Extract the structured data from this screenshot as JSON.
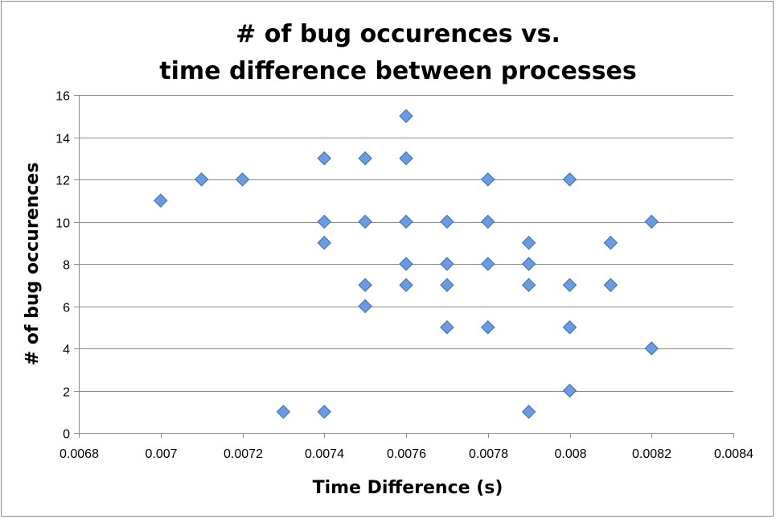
{
  "chart_data": {
    "type": "scatter",
    "title": [
      "# of bug occurences vs.",
      "time difference between processes"
    ],
    "xlabel": "Time Difference (s)",
    "ylabel": "# of bug occurences",
    "xlim": [
      0.0068,
      0.0084
    ],
    "ylim": [
      0,
      16
    ],
    "x_ticks": [
      "0.0068",
      "0.007",
      "0.0072",
      "0.0074",
      "0.0076",
      "0.0078",
      "0.008",
      "0.0082",
      "0.0084"
    ],
    "y_ticks": [
      "0",
      "2",
      "4",
      "6",
      "8",
      "10",
      "12",
      "14",
      "16"
    ],
    "grid": "horizontal",
    "legend": "none",
    "marker": "diamond",
    "marker_color": "#6a9ae0",
    "points": [
      {
        "x": 0.007,
        "y": 11
      },
      {
        "x": 0.0071,
        "y": 12
      },
      {
        "x": 0.0072,
        "y": 12
      },
      {
        "x": 0.0073,
        "y": 1
      },
      {
        "x": 0.0074,
        "y": 13
      },
      {
        "x": 0.0074,
        "y": 10
      },
      {
        "x": 0.0074,
        "y": 9
      },
      {
        "x": 0.0074,
        "y": 1
      },
      {
        "x": 0.0075,
        "y": 13
      },
      {
        "x": 0.0075,
        "y": 10
      },
      {
        "x": 0.0075,
        "y": 7
      },
      {
        "x": 0.0075,
        "y": 6
      },
      {
        "x": 0.0076,
        "y": 15
      },
      {
        "x": 0.0076,
        "y": 13
      },
      {
        "x": 0.0076,
        "y": 10
      },
      {
        "x": 0.0076,
        "y": 8
      },
      {
        "x": 0.0076,
        "y": 7
      },
      {
        "x": 0.0077,
        "y": 10
      },
      {
        "x": 0.0077,
        "y": 8
      },
      {
        "x": 0.0077,
        "y": 7
      },
      {
        "x": 0.0077,
        "y": 5
      },
      {
        "x": 0.0078,
        "y": 12
      },
      {
        "x": 0.0078,
        "y": 10
      },
      {
        "x": 0.0078,
        "y": 8
      },
      {
        "x": 0.0078,
        "y": 5
      },
      {
        "x": 0.0079,
        "y": 9
      },
      {
        "x": 0.0079,
        "y": 8
      },
      {
        "x": 0.0079,
        "y": 7
      },
      {
        "x": 0.0079,
        "y": 1
      },
      {
        "x": 0.008,
        "y": 12
      },
      {
        "x": 0.008,
        "y": 7
      },
      {
        "x": 0.008,
        "y": 5
      },
      {
        "x": 0.008,
        "y": 2
      },
      {
        "x": 0.0081,
        "y": 9
      },
      {
        "x": 0.0081,
        "y": 7
      },
      {
        "x": 0.0082,
        "y": 10
      },
      {
        "x": 0.0082,
        "y": 4
      }
    ]
  }
}
